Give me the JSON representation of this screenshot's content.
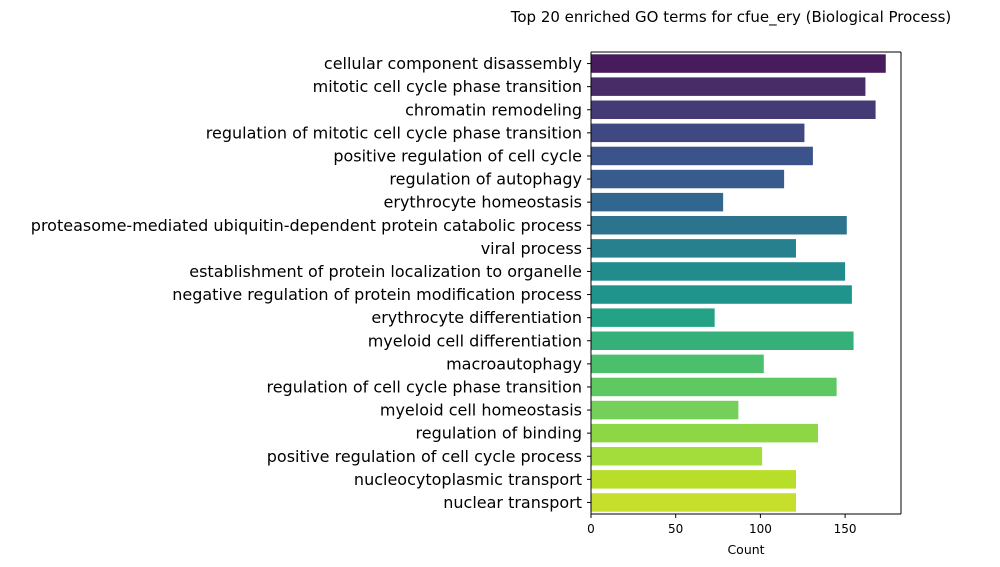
{
  "chart_data": {
    "type": "bar",
    "orientation": "horizontal",
    "title": "Top 20 enriched GO terms for cfue_ery (Biological Process)",
    "xlabel": "Count",
    "ylabel": "",
    "xlim": [
      0,
      183
    ],
    "xticks": [
      0,
      50,
      100,
      150
    ],
    "grid": false,
    "legend": "none",
    "palette": "viridis",
    "categories": [
      "cellular component disassembly",
      "mitotic cell cycle phase transition",
      "chromatin remodeling",
      "regulation of mitotic cell cycle phase transition",
      "positive regulation of cell cycle",
      "regulation of autophagy",
      "erythrocyte homeostasis",
      "proteasome-mediated ubiquitin-dependent protein catabolic process",
      "viral process",
      "establishment of protein localization to organelle",
      "negative regulation of protein modification process",
      "erythrocyte differentiation",
      "myeloid cell differentiation",
      "macroautophagy",
      "regulation of cell cycle phase transition",
      "myeloid cell homeostasis",
      "regulation of binding",
      "positive regulation of cell cycle process",
      "nucleocytoplasmic transport",
      "nuclear transport"
    ],
    "values": [
      174,
      162,
      168,
      126,
      131,
      114,
      78,
      151,
      121,
      150,
      154,
      73,
      155,
      102,
      145,
      87,
      134,
      101,
      121,
      121
    ],
    "colors": [
      "#481b5c",
      "#472c68",
      "#443a74",
      "#404882",
      "#3b528b",
      "#375b8d",
      "#31678e",
      "#2c738e",
      "#27808e",
      "#228b8d",
      "#1f948c",
      "#24a286",
      "#35b079",
      "#4cbf6c",
      "#5ec962",
      "#74d05a",
      "#8dd646",
      "#a3dd3c",
      "#b8de29",
      "#c6de2c"
    ]
  }
}
